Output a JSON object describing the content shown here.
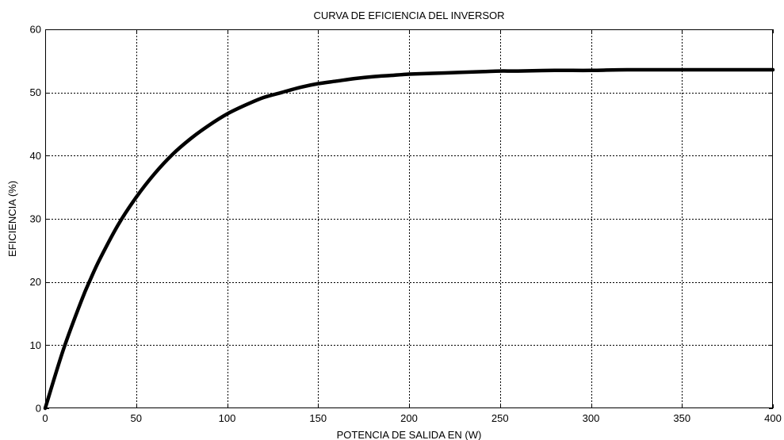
{
  "chart_data": {
    "type": "line",
    "title": "CURVA DE EFICIENCIA DEL INVERSOR",
    "xlabel": "POTENCIA DE SALIDA EN (W)",
    "ylabel": "EFICIENCIA (%)",
    "xlim": [
      0,
      400
    ],
    "ylim": [
      0,
      60
    ],
    "xticks": [
      0,
      50,
      100,
      150,
      200,
      250,
      300,
      350,
      400
    ],
    "yticks": [
      0,
      10,
      20,
      30,
      40,
      50,
      60
    ],
    "grid": true,
    "line_color": "#000000",
    "series": [
      {
        "x": [
          0,
          10,
          20,
          25,
          30,
          40,
          50,
          60,
          70,
          80,
          90,
          100,
          110,
          120,
          130,
          140,
          150,
          160,
          170,
          180,
          190,
          200,
          220,
          240,
          250,
          260,
          280,
          300,
          320,
          350,
          380,
          400
        ],
        "values": [
          0,
          9.3,
          17.1,
          20.5,
          23.6,
          29.0,
          33.4,
          37.1,
          40.2,
          42.7,
          44.8,
          46.6,
          48.0,
          49.2,
          50.0,
          50.8,
          51.4,
          51.8,
          52.2,
          52.5,
          52.7,
          52.9,
          53.1,
          53.3,
          53.4,
          53.4,
          53.5,
          53.5,
          53.6,
          53.6,
          53.6,
          53.6
        ]
      }
    ]
  }
}
